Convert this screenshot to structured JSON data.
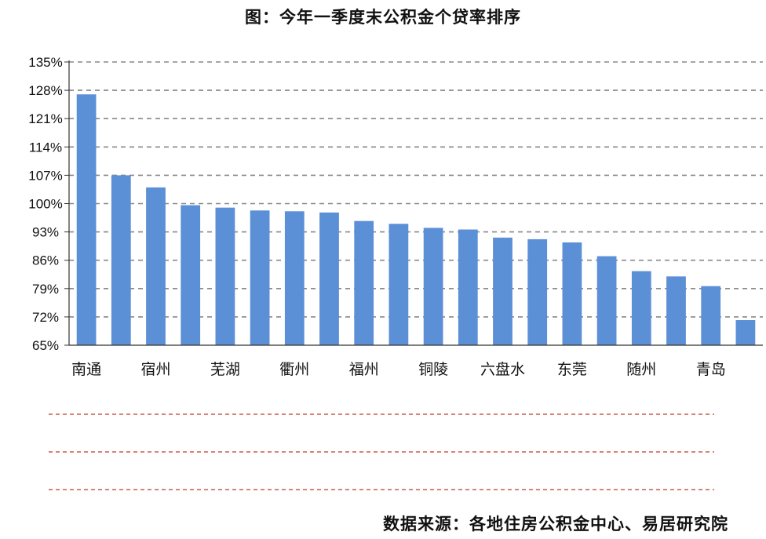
{
  "title": "图：今年一季度末公积金个贷率排序",
  "source": "数据来源：各地住房公积金中心、易居研究院",
  "colors": {
    "bar": "#5b8fd6",
    "grid": "#888888",
    "divider": "#c0392b"
  },
  "chart_data": {
    "type": "bar",
    "categories": [
      "南通",
      "",
      "宿州",
      "",
      "芜湖",
      "",
      "衢州",
      "",
      "福州",
      "",
      "铜陵",
      "",
      "六盘水",
      "",
      "东莞",
      "",
      "随州",
      "",
      "青岛",
      ""
    ],
    "values": [
      127,
      107,
      104,
      99.6,
      99,
      98.3,
      98.1,
      97.8,
      95.7,
      95,
      94,
      93.6,
      91.6,
      91.2,
      90.4,
      87,
      83.3,
      82,
      79.6,
      71.2
    ],
    "xlabel": "",
    "ylabel": "",
    "ylim": [
      65,
      135
    ],
    "yticks": [
      "65%",
      "72%",
      "79%",
      "86%",
      "93%",
      "100%",
      "107%",
      "114%",
      "121%",
      "128%",
      "135%"
    ],
    "grid": true,
    "legend": "none"
  }
}
